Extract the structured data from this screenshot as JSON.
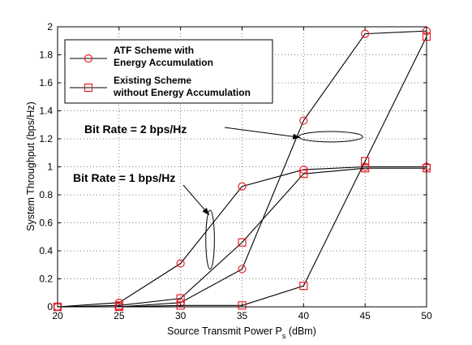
{
  "chart_data": {
    "type": "line",
    "xlabel": "Source Transmit Power P",
    "xlabel_subscript": "s",
    "xlabel_unit": " (dBm)",
    "ylabel": "System Throughput (bps/Hz)",
    "xlim": [
      20,
      50
    ],
    "ylim": [
      0,
      2
    ],
    "x_ticks": [
      20,
      25,
      30,
      35,
      40,
      45,
      50
    ],
    "y_ticks": [
      0,
      0.2,
      0.4,
      0.6,
      0.8,
      1,
      1.2,
      1.4,
      1.6,
      1.8,
      2
    ],
    "x_tick_labels": [
      "20",
      "25",
      "30",
      "35",
      "40",
      "45",
      "50"
    ],
    "y_tick_labels": [
      "0",
      "0.2",
      "0.4",
      "0.6",
      "0.8",
      "1",
      "1.2",
      "1.4",
      "1.6",
      "1.8",
      "2"
    ],
    "grid": true,
    "legend_position": "top-left",
    "line_color": "#000000",
    "marker_color": "#e8202a",
    "legend": [
      {
        "marker": "circle",
        "lines": [
          "ATF Scheme with",
          "Energy Accumulation"
        ]
      },
      {
        "marker": "square",
        "lines": [
          "Existing Scheme",
          "without Energy Accumulation"
        ]
      }
    ],
    "series": [
      {
        "scheme": "ATF",
        "bit_rate": 1,
        "marker": "circle",
        "x": [
          20,
          25,
          30,
          35,
          40,
          45,
          50
        ],
        "y": [
          0,
          0.03,
          0.31,
          0.86,
          0.98,
          1.0,
          1.0
        ]
      },
      {
        "scheme": "ATF",
        "bit_rate": 2,
        "marker": "circle",
        "x": [
          20,
          25,
          30,
          35,
          40,
          45,
          50
        ],
        "y": [
          0,
          0.0,
          0.03,
          0.27,
          1.33,
          1.95,
          1.97
        ]
      },
      {
        "scheme": "Existing",
        "bit_rate": 1,
        "marker": "square",
        "x": [
          20,
          25,
          30,
          35,
          40,
          45,
          50
        ],
        "y": [
          0,
          0.01,
          0.06,
          0.46,
          0.95,
          0.99,
          0.99
        ]
      },
      {
        "scheme": "Existing",
        "bit_rate": 2,
        "marker": "square",
        "x": [
          20,
          25,
          30,
          35,
          40,
          45,
          50
        ],
        "y": [
          0,
          0.0,
          0.01,
          0.01,
          0.15,
          1.04,
          1.93
        ]
      }
    ],
    "annotations": [
      {
        "text": "Bit Rate = 2 bps/Hz",
        "target": "bit_rate_2",
        "ellipse_center": [
          42.2,
          1.215
        ],
        "ellipse_rx": 5.2,
        "ellipse_ry": 0.075
      },
      {
        "text": "Bit Rate = 1 bps/Hz",
        "target": "bit_rate_1",
        "ellipse_center": [
          32.4,
          0.48
        ],
        "ellipse_rx": 0.35,
        "ellipse_ry": 0.21
      }
    ]
  }
}
